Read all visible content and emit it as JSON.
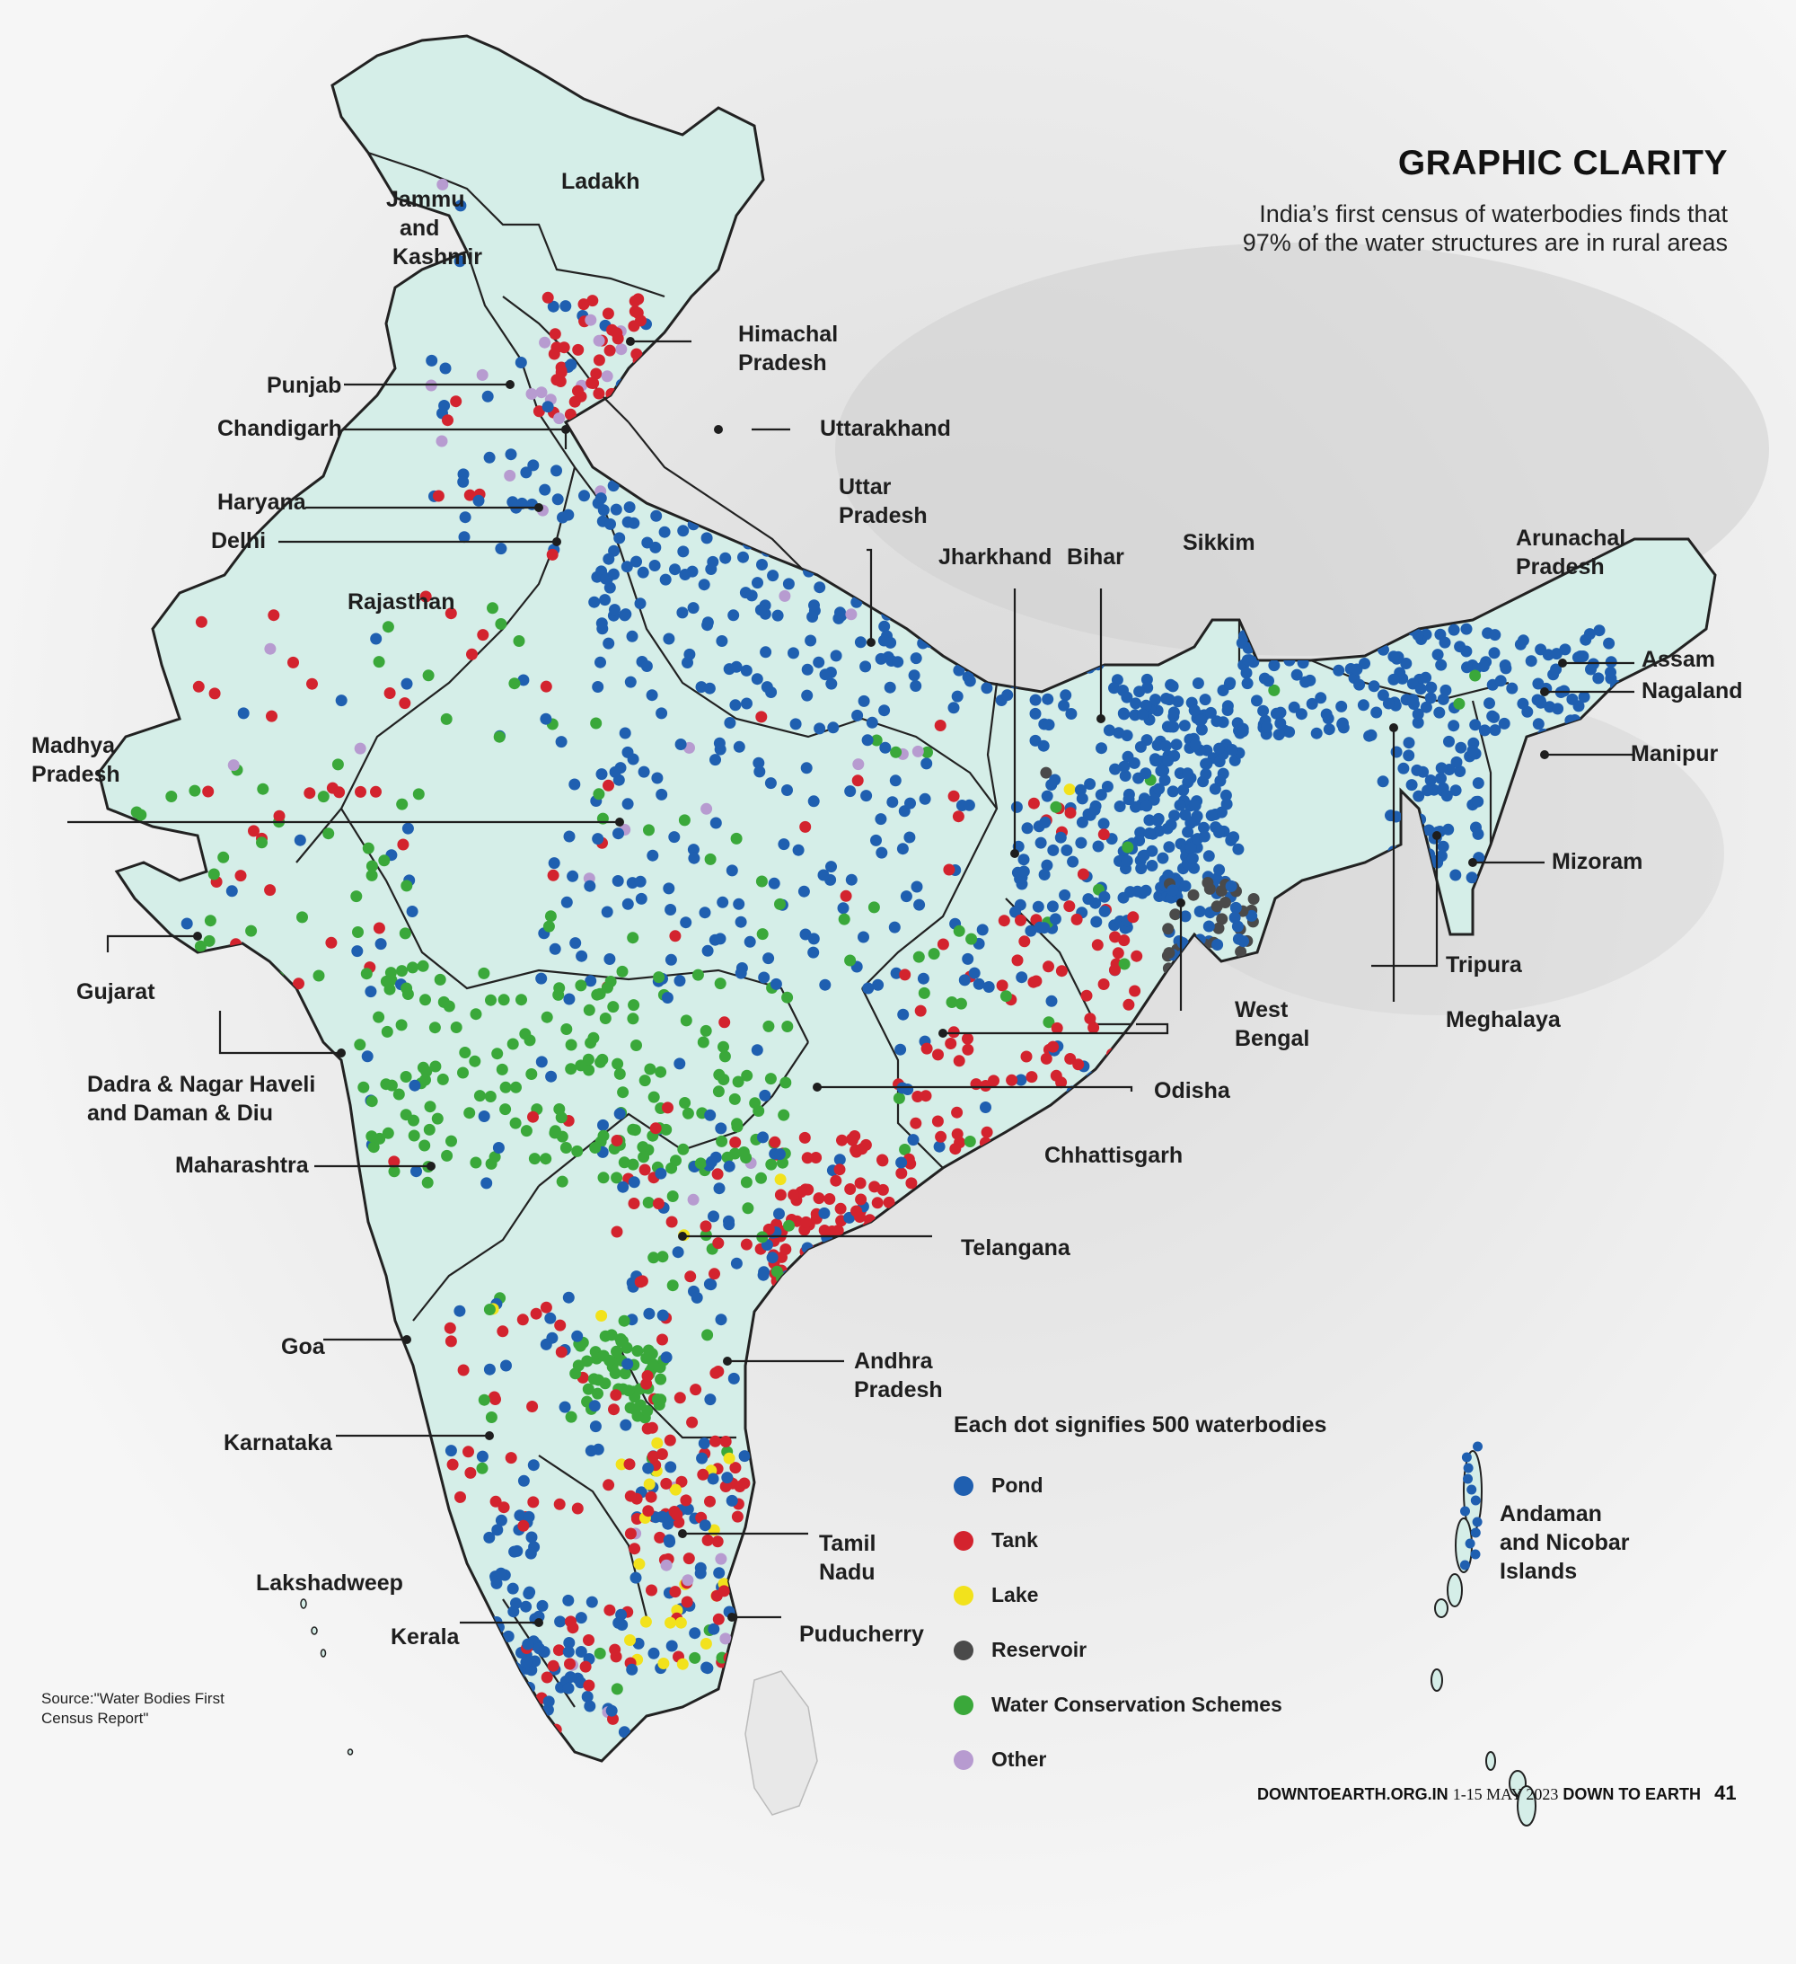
{
  "header": {
    "title": "GRAPHIC CLARITY",
    "subtitle": "India’s first census of waterbodies finds that 97% of the water structures are in rural areas"
  },
  "legend": {
    "title": "Each dot signifies 500 waterbodies",
    "items": [
      {
        "label": "Pond",
        "color": "#1f5fb0"
      },
      {
        "label": "Tank",
        "color": "#d3232e"
      },
      {
        "label": "Lake",
        "color": "#f2e21c"
      },
      {
        "label": "Reservoir",
        "color": "#4a4a4a"
      },
      {
        "label": "Water Conservation Schemes",
        "color": "#3aa83a"
      },
      {
        "label": "Other",
        "color": "#b79bd0"
      }
    ]
  },
  "labels": {
    "ladakh": "Ladakh",
    "jk_1": "Jammu",
    "jk_2": "and",
    "jk_3": "Kashmir",
    "himachal_1": "Himachal",
    "himachal_2": "Pradesh",
    "punjab": "Punjab",
    "chandigarh": "Chandigarh",
    "uttarakhand": "Uttarakhand",
    "haryana": "Haryana",
    "delhi": "Delhi",
    "up_1": "Uttar",
    "up_2": "Pradesh",
    "jharkhand": "Jharkhand",
    "bihar": "Bihar",
    "sikkim": "Sikkim",
    "arunachal_1": "Arunachal",
    "arunachal_2": "Pradesh",
    "assam": "Assam",
    "nagaland": "Nagaland",
    "manipur": "Manipur",
    "mizoram": "Mizoram",
    "rajasthan": "Rajasthan",
    "mp_1": "Madhya",
    "mp_2": "Pradesh",
    "gujarat": "Gujarat",
    "dnh_1": "Dadra & Nagar Haveli",
    "dnh_2": "and Daman & Diu",
    "maharashtra": "Maharashtra",
    "tripura": "Tripura",
    "meghalaya": "Meghalaya",
    "wb_1": "West",
    "wb_2": "Bengal",
    "odisha": "Odisha",
    "chhattisgarh": "Chhattisgarh",
    "telangana": "Telangana",
    "goa": "Goa",
    "ap_1": "Andhra",
    "ap_2": "Pradesh",
    "karnataka": "Karnataka",
    "lakshadweep": "Lakshadweep",
    "tn_1": "Tamil",
    "tn_2": "Nadu",
    "kerala": "Kerala",
    "puducherry": "Puducherry",
    "an_1": "Andaman",
    "an_2": "and Nicobar",
    "an_3": "Islands"
  },
  "source": "Source:\"Water Bodies First Census Report\"",
  "footer": {
    "site": "DOWNTOEARTH.ORG.IN",
    "date": "1-15 MAY 2023",
    "magazine": "DOWN TO EARTH",
    "page": "41"
  },
  "colors": {
    "land": "#d5eee8",
    "border": "#222222",
    "terrain": "#e6e6e6"
  }
}
